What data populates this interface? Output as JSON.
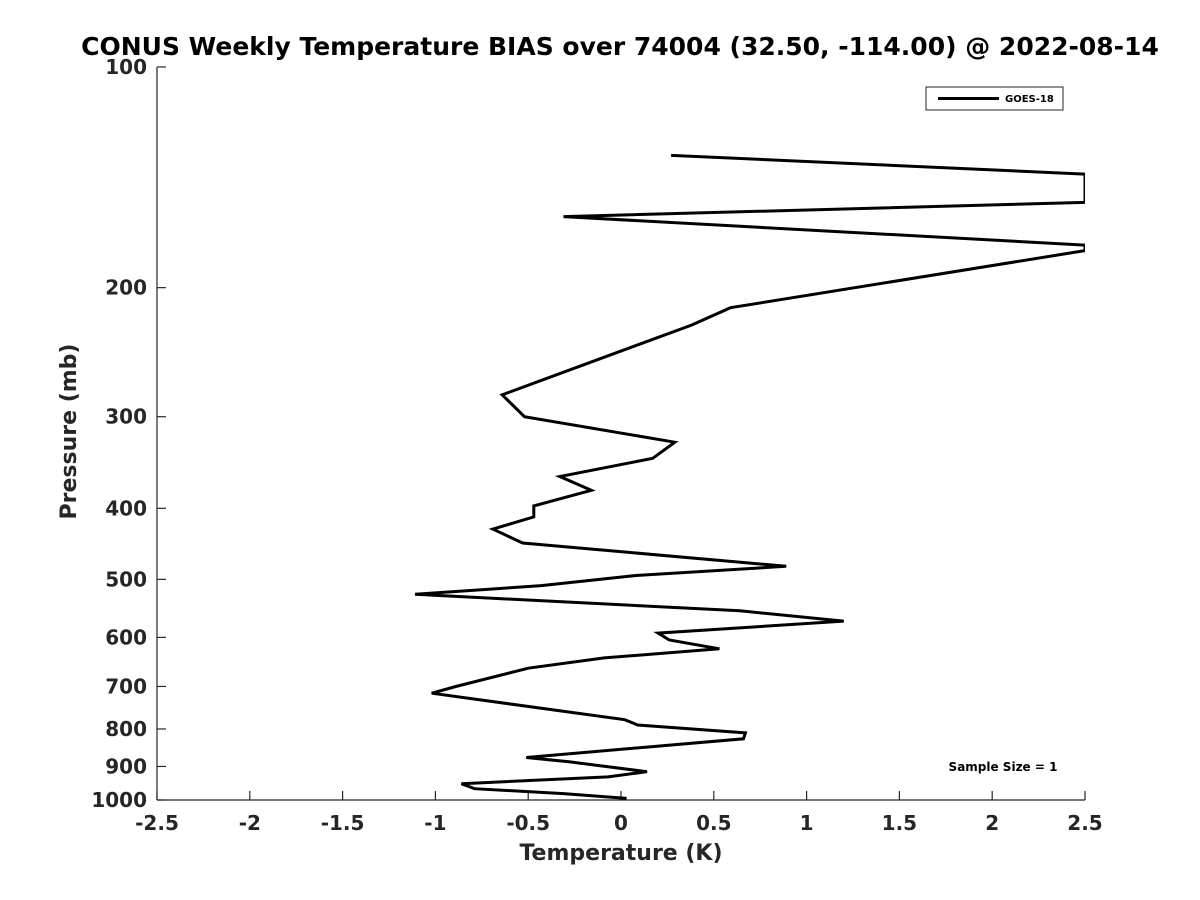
{
  "chart_data": {
    "type": "line",
    "title": "CONUS Weekly Temperature BIAS over 74004 (32.50, -114.00) @ 2022-08-14",
    "xlabel": "Temperature (K)",
    "ylabel": "Pressure (mb)",
    "xlim": [
      -2.5,
      2.5
    ],
    "ylim": [
      100,
      1000
    ],
    "y_scale": "log",
    "y_reversed": true,
    "x_ticks": [
      -2.5,
      -2,
      -1.5,
      -1,
      -0.5,
      0,
      0.5,
      1,
      1.5,
      2,
      2.5
    ],
    "x_tick_labels": [
      "-2.5",
      "-2",
      "-1.5",
      "-1",
      "-0.5",
      "0",
      "0.5",
      "1",
      "1.5",
      "2",
      "2.5"
    ],
    "y_ticks": [
      100,
      200,
      300,
      400,
      500,
      600,
      700,
      800,
      900,
      1000
    ],
    "y_tick_labels": [
      "100",
      "200",
      "300",
      "400",
      "500",
      "600",
      "700",
      "800",
      "900",
      "1000"
    ],
    "legend": {
      "entries": [
        "GOES-18"
      ],
      "location": "top-right"
    },
    "annotation": "Sample Size = 1",
    "series": [
      {
        "name": "GOES-18",
        "color": "#000000",
        "points": [
          {
            "x": 0.03,
            "p": 995
          },
          {
            "x": -0.31,
            "p": 980
          },
          {
            "x": -0.79,
            "p": 965
          },
          {
            "x": -0.86,
            "p": 950
          },
          {
            "x": -0.07,
            "p": 930
          },
          {
            "x": 0.14,
            "p": 915
          },
          {
            "x": -0.28,
            "p": 887
          },
          {
            "x": -0.51,
            "p": 875
          },
          {
            "x": 0.66,
            "p": 825
          },
          {
            "x": 0.67,
            "p": 810
          },
          {
            "x": 0.09,
            "p": 790
          },
          {
            "x": 0.02,
            "p": 777
          },
          {
            "x": -1.02,
            "p": 715
          },
          {
            "x": -0.89,
            "p": 700
          },
          {
            "x": -0.5,
            "p": 661
          },
          {
            "x": -0.09,
            "p": 640
          },
          {
            "x": 0.53,
            "p": 622
          },
          {
            "x": 0.26,
            "p": 605
          },
          {
            "x": 0.2,
            "p": 592
          },
          {
            "x": 1.2,
            "p": 570
          },
          {
            "x": 0.64,
            "p": 552
          },
          {
            "x": -1.11,
            "p": 524
          },
          {
            "x": -0.43,
            "p": 510
          },
          {
            "x": 0.08,
            "p": 494
          },
          {
            "x": 0.89,
            "p": 480
          },
          {
            "x": -0.53,
            "p": 446
          },
          {
            "x": -0.69,
            "p": 427
          },
          {
            "x": -0.47,
            "p": 411
          },
          {
            "x": -0.47,
            "p": 397
          },
          {
            "x": -0.16,
            "p": 378
          },
          {
            "x": -0.33,
            "p": 362
          },
          {
            "x": 0.17,
            "p": 342
          },
          {
            "x": 0.29,
            "p": 325
          },
          {
            "x": -0.52,
            "p": 300
          },
          {
            "x": -0.64,
            "p": 280
          },
          {
            "x": 0.38,
            "p": 225
          },
          {
            "x": 0.59,
            "p": 213
          },
          {
            "x": 2.5,
            "p": 178
          },
          {
            "x": 2.5,
            "p": 175
          },
          {
            "x": -0.31,
            "p": 160
          },
          {
            "x": 2.5,
            "p": 153
          },
          {
            "x": 2.5,
            "p": 140
          },
          {
            "x": 0.27,
            "p": 132
          }
        ]
      }
    ]
  }
}
